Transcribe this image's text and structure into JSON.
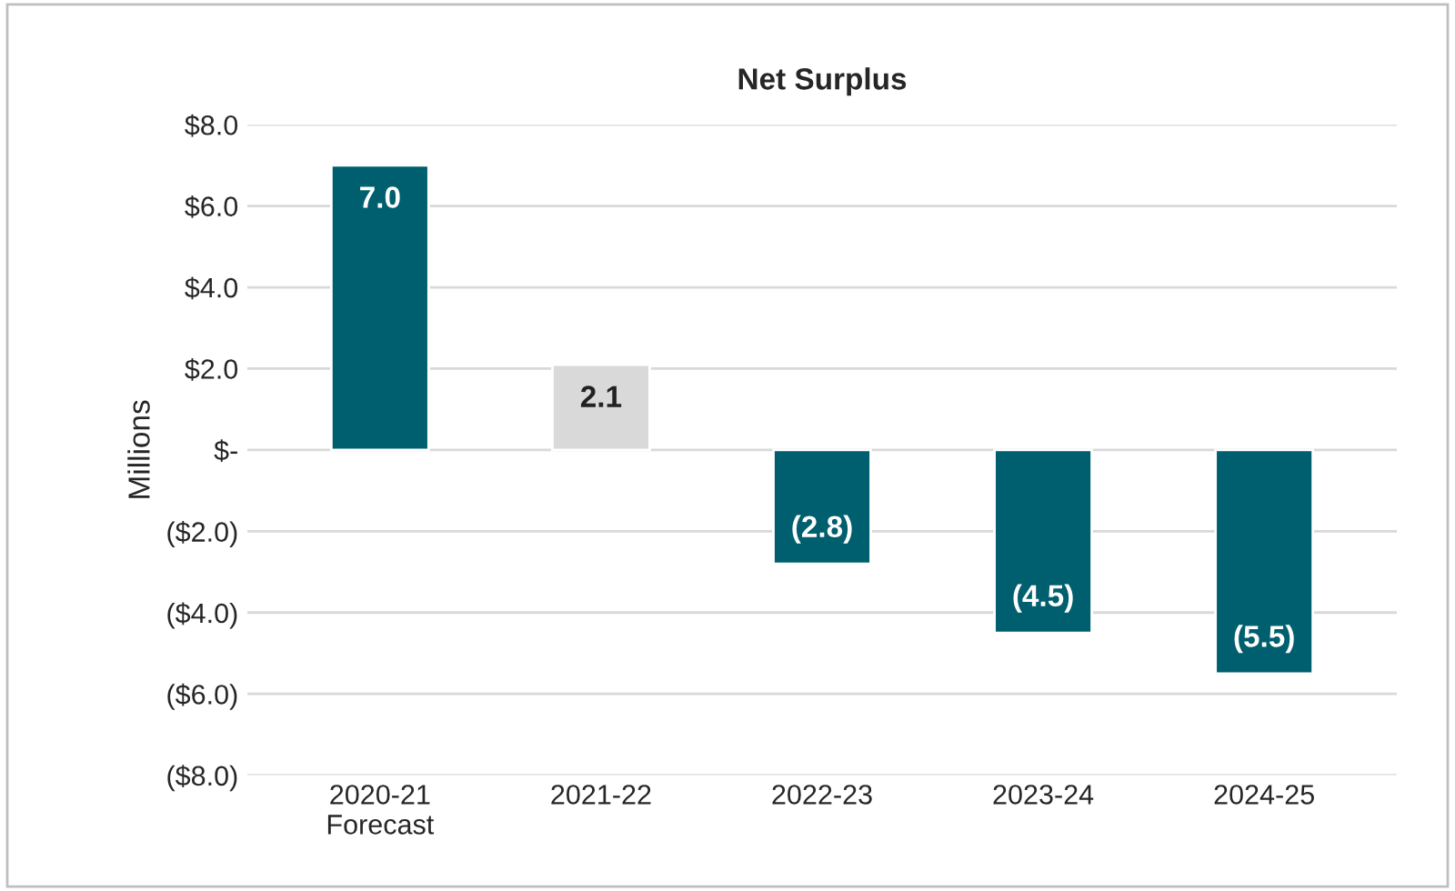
{
  "chart_data": {
    "type": "bar",
    "title": "Net Surplus",
    "ylabel": "Millions",
    "categories": [
      "2020-21\nForecast",
      "2021-22",
      "2022-23",
      "2023-24",
      "2024-25"
    ],
    "values": [
      7.0,
      2.1,
      -2.8,
      -4.5,
      -5.5
    ],
    "colors": [
      "#005f6e",
      "#d9d9d9",
      "#005f6e",
      "#005f6e",
      "#005f6e"
    ],
    "value_labels": [
      "7.0",
      "2.1",
      "(2.8)",
      "(4.5)",
      "(5.5)"
    ],
    "ylim": [
      -8,
      8
    ],
    "yticks": [
      {
        "value": -8,
        "label": "($8.0)"
      },
      {
        "value": -6,
        "label": "($6.0)"
      },
      {
        "value": -4,
        "label": "($4.0)"
      },
      {
        "value": -2,
        "label": "($2.0)"
      },
      {
        "value": 0,
        "label": "$-"
      },
      {
        "value": 2,
        "label": "$2.0"
      },
      {
        "value": 4,
        "label": "$4.0"
      },
      {
        "value": 6,
        "label": "$6.0"
      },
      {
        "value": 8,
        "label": "$8.0"
      }
    ],
    "grid": "y",
    "legend": false
  }
}
